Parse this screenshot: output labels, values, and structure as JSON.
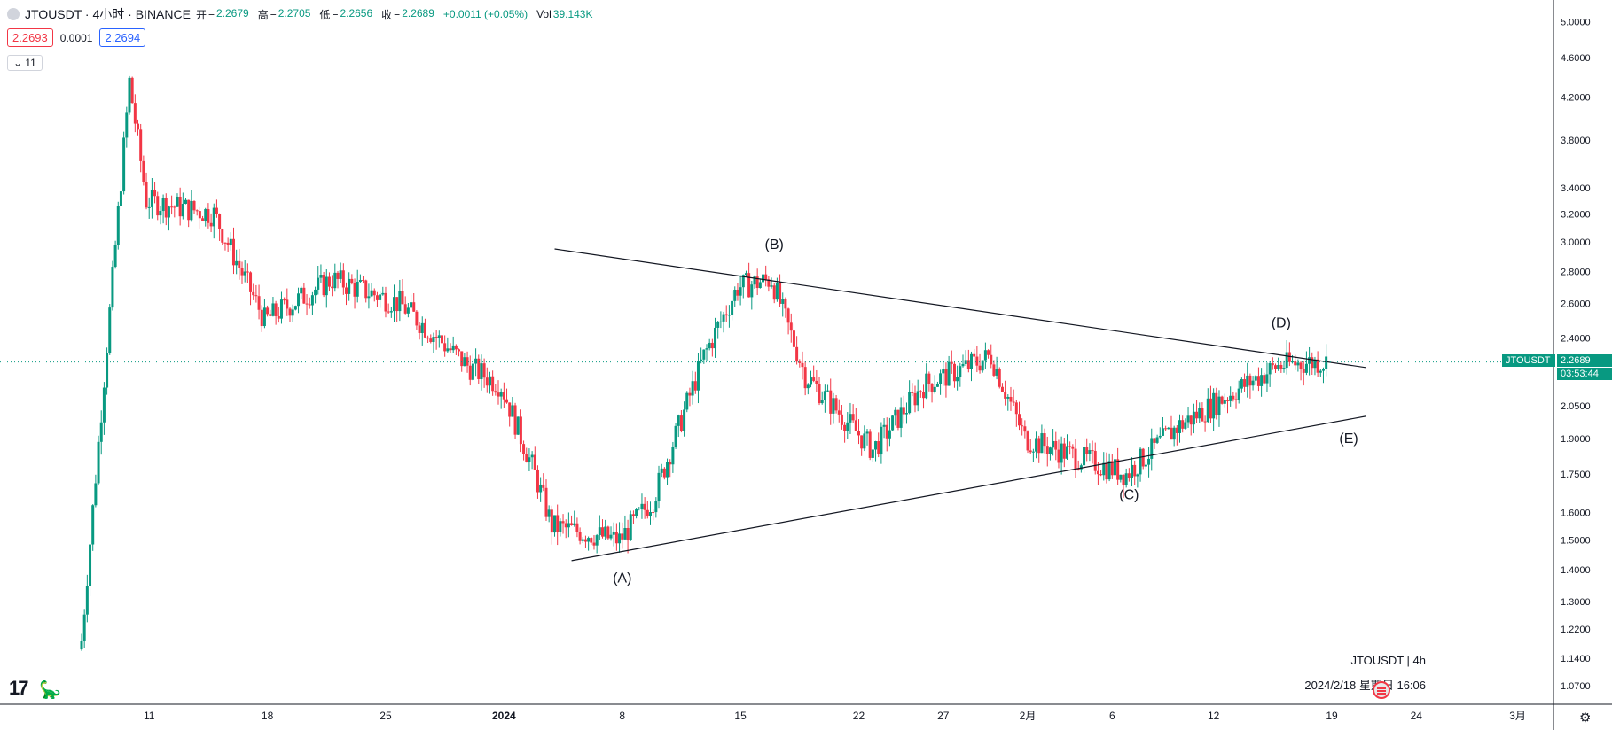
{
  "header": {
    "symbol_title": "JTOUSDT · 4小时 · BINANCE",
    "ohlc": [
      {
        "k": "开",
        "v": "2.2679"
      },
      {
        "k": "高",
        "v": "2.2705"
      },
      {
        "k": "低",
        "v": "2.2656"
      },
      {
        "k": "收",
        "v": "2.2689"
      }
    ],
    "change": "+0.0011 (+0.05%)",
    "vol_label": "Vol",
    "vol_value": "39.143K",
    "sell_price": "2.2693",
    "spread": "0.0001",
    "buy_price": "2.2694",
    "indicator_toggle": "11"
  },
  "footer": {
    "symbol_interval": "JTOUSDT | 4h",
    "datetime": "2024/2/18 星期日 16:06"
  },
  "price_tag": {
    "symbol": "JTOUSDT",
    "price": "2.2689",
    "countdown": "03:53:44"
  },
  "colors": {
    "up": "#089981",
    "down": "#f23645",
    "line": "#131722",
    "tag": "#089981"
  },
  "chart_data": {
    "type": "candlestick",
    "y_scale": "log",
    "ylim": [
      1.05,
      5.1
    ],
    "y_ticks": [
      "5.0000",
      "4.6000",
      "4.2000",
      "3.8000",
      "3.4000",
      "3.2000",
      "3.0000",
      "2.8000",
      "2.6000",
      "2.4000",
      "2.0500",
      "1.9000",
      "1.7500",
      "1.6000",
      "1.5000",
      "1.4000",
      "1.3000",
      "1.2200",
      "1.1400",
      "1.0700"
    ],
    "x_ticks": [
      "11",
      "18",
      "25",
      "2024",
      "8",
      "15",
      "22",
      "27",
      "2月",
      "6",
      "12",
      "19",
      "24",
      "3月"
    ],
    "key_points": [
      {
        "date": "2023-12-07",
        "price": 1.1
      },
      {
        "date": "2023-12-10",
        "price": 4.35
      },
      {
        "date": "2023-12-11",
        "price": 3.3
      },
      {
        "date": "2023-12-15",
        "price": 3.2
      },
      {
        "date": "2023-12-18",
        "price": 2.5
      },
      {
        "date": "2023-12-22",
        "price": 2.75
      },
      {
        "date": "2023-12-26",
        "price": 2.6
      },
      {
        "date": "2023-12-30",
        "price": 2.25
      },
      {
        "date": "2024-01-01",
        "price": 2.15
      },
      {
        "date": "2024-01-03",
        "price": 1.75
      },
      {
        "date": "2024-01-04",
        "price": 1.55
      },
      {
        "date": "2024-01-08",
        "price": 1.5
      },
      {
        "date": "2024-01-10",
        "price": 1.65
      },
      {
        "date": "2024-01-13",
        "price": 2.3
      },
      {
        "date": "2024-01-15",
        "price": 2.7
      },
      {
        "date": "2024-01-17",
        "price": 2.75
      },
      {
        "date": "2024-01-19",
        "price": 2.2
      },
      {
        "date": "2024-01-23",
        "price": 1.85
      },
      {
        "date": "2024-01-26",
        "price": 2.15
      },
      {
        "date": "2024-01-30",
        "price": 2.3
      },
      {
        "date": "2024-02-01",
        "price": 1.9
      },
      {
        "date": "2024-02-07",
        "price": 1.75
      },
      {
        "date": "2024-02-10",
        "price": 1.95
      },
      {
        "date": "2024-02-13",
        "price": 2.1
      },
      {
        "date": "2024-02-16",
        "price": 2.25
      },
      {
        "date": "2024-02-18",
        "price": 2.2689
      }
    ],
    "trendlines": [
      {
        "from": {
          "date": "2024-01-04",
          "price": 2.95
        },
        "to": {
          "date": "2024-02-21",
          "price": 2.24
        }
      },
      {
        "from": {
          "date": "2024-01-05",
          "price": 1.43
        },
        "to": {
          "date": "2024-02-21",
          "price": 2.0
        }
      }
    ],
    "annotations": [
      {
        "text": "(A)",
        "date": "2024-01-08",
        "price": 1.36
      },
      {
        "text": "(B)",
        "date": "2024-01-17",
        "price": 2.95
      },
      {
        "text": "(C)",
        "date": "2024-02-07",
        "price": 1.65
      },
      {
        "text": "(D)",
        "date": "2024-02-16",
        "price": 2.46
      },
      {
        "text": "(E)",
        "date": "2024-02-20",
        "price": 1.88
      }
    ],
    "last_price": 2.2689
  }
}
